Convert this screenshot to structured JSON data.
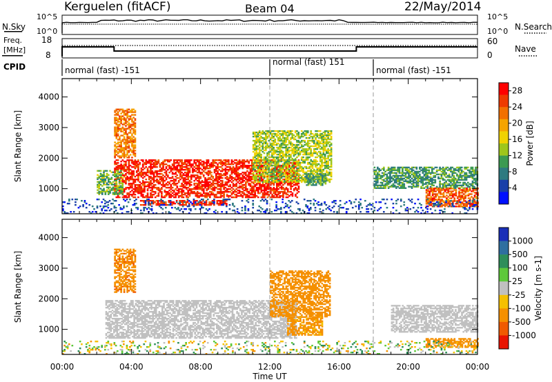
{
  "header": {
    "station": "Kerguelen (fitACF)",
    "beam": "Beam 04",
    "date": "22/May/2014"
  },
  "panels": {
    "nsky": {
      "left_label": "N.Sky",
      "left_ticks": [
        "10^5",
        "10^0"
      ],
      "right_ticks": [
        "10^5",
        "10^0"
      ],
      "right_label": "N.Search"
    },
    "freq": {
      "left_label_1": "Freq.",
      "left_label_2": "[MHz]",
      "left_ticks": [
        "18",
        "8"
      ],
      "right_ticks": [
        "60",
        "0"
      ],
      "right_label": "Nave"
    },
    "cpid": {
      "label": "CPID",
      "segments": [
        {
          "text": "normal (fast) -151",
          "start_hour": 0
        },
        {
          "text": "normal (fast) 151",
          "start_hour": 12
        },
        {
          "text": "normal (fast) -151",
          "start_hour": 18
        }
      ]
    }
  },
  "time_axis": {
    "label": "Time UT",
    "ticks": [
      "00:00",
      "04:00",
      "08:00",
      "12:00",
      "16:00",
      "20:00",
      "00:00"
    ],
    "range_hours": [
      0,
      24
    ],
    "major_step_hours": 4,
    "vertical_markers_hours": [
      12,
      18
    ]
  },
  "range_axis": {
    "label": "Slant Range [km]",
    "ticks": [
      "1000",
      "2000",
      "3000",
      "4000"
    ],
    "range_km": [
      180,
      4600
    ]
  },
  "power_colorbar": {
    "label": "Power [dB]",
    "ticks": [
      "4",
      "8",
      "12",
      "16",
      "20",
      "24",
      "28"
    ],
    "colors": [
      "#0010ff",
      "#1a3fa8",
      "#2e7a80",
      "#3c9a52",
      "#9ec61c",
      "#f0d200",
      "#f5a400",
      "#f27000",
      "#ee3a00",
      "#ff0000"
    ]
  },
  "velocity_colorbar": {
    "label": "Velocity [m s-1]",
    "ticks": [
      "1000",
      "500",
      "100",
      "25",
      "-25",
      "-100",
      "-500",
      "-1000"
    ],
    "colors": [
      "#1a2fb8",
      "#2f6fa0",
      "#2e8e5a",
      "#5ec83a",
      "#c0c0c0",
      "#f5c000",
      "#f59000",
      "#f05a00",
      "#e81400"
    ]
  },
  "chart_data": [
    {
      "type": "heatmap",
      "name": "power",
      "xlabel": "Time UT",
      "ylabel": "Slant Range [km]",
      "xlim": [
        0,
        24
      ],
      "ylim": [
        180,
        4600
      ],
      "colorbar": "Power [dB]",
      "regions": [
        {
          "t0": 3.0,
          "t1": 13.7,
          "r0": 700,
          "r1": 1950,
          "value": 27
        },
        {
          "t0": 2.0,
          "t1": 3.5,
          "r0": 800,
          "r1": 1600,
          "value": 12
        },
        {
          "t0": 3.0,
          "t1": 4.2,
          "r0": 2000,
          "r1": 3600,
          "value": 22
        },
        {
          "t0": 4.5,
          "t1": 9.5,
          "r0": 450,
          "r1": 600,
          "value": 27
        },
        {
          "t0": 11.0,
          "t1": 15.5,
          "r0": 1200,
          "r1": 2900,
          "value": 14
        },
        {
          "t0": 14.0,
          "t1": 15.2,
          "r0": 1100,
          "r1": 1500,
          "value": 10
        },
        {
          "t0": 18.0,
          "t1": 24.0,
          "r0": 1000,
          "r1": 1700,
          "value": 10
        },
        {
          "t0": 21.0,
          "t1": 24.0,
          "r0": 400,
          "r1": 1000,
          "value": 24
        },
        {
          "t0": 0.0,
          "t1": 24.0,
          "r0": 180,
          "r1": 650,
          "value": 5
        }
      ]
    },
    {
      "type": "heatmap",
      "name": "velocity",
      "xlabel": "Time UT",
      "ylabel": "Slant Range [km]",
      "xlim": [
        0,
        24
      ],
      "ylim": [
        180,
        4600
      ],
      "colorbar": "Velocity [m s-1]",
      "regions": [
        {
          "t0": 2.5,
          "t1": 13.5,
          "r0": 700,
          "r1": 1950,
          "value": 0
        },
        {
          "t0": 3.0,
          "t1": 4.2,
          "r0": 2200,
          "r1": 3600,
          "value": -400
        },
        {
          "t0": 12.0,
          "t1": 15.5,
          "r0": 1400,
          "r1": 2900,
          "value": -300
        },
        {
          "t0": 13.0,
          "t1": 15.0,
          "r0": 800,
          "r1": 1400,
          "value": -200
        },
        {
          "t0": 19.0,
          "t1": 24.0,
          "r0": 900,
          "r1": 1800,
          "value": 0
        },
        {
          "t0": 21.0,
          "t1": 24.0,
          "r0": 400,
          "r1": 700,
          "value": -300
        },
        {
          "t0": 0.0,
          "t1": 24.0,
          "r0": 180,
          "r1": 600,
          "value": 10
        }
      ]
    }
  ]
}
